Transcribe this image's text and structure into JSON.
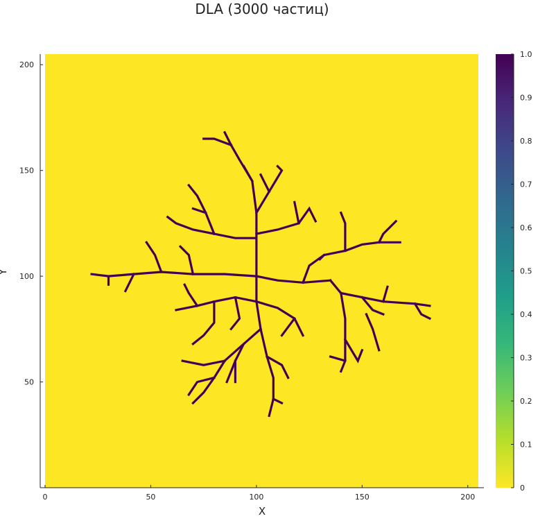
{
  "chart_data": {
    "type": "heatmap",
    "title": "DLA  (3000 частиц)",
    "xlabel": "X",
    "ylabel": "Y",
    "xlim": [
      0,
      205
    ],
    "ylim": [
      0,
      205
    ],
    "xticks": [
      0,
      50,
      100,
      150,
      200
    ],
    "yticks": [
      50,
      100,
      150,
      200
    ],
    "colorbar": {
      "range": [
        0,
        1
      ],
      "ticks": [
        "0",
        "0.1",
        "0.2",
        "0.3",
        "0.4",
        "0.5",
        "0.6",
        "0.7",
        "0.8",
        "0.9",
        "1.0"
      ],
      "colormap": "viridis",
      "stops": [
        "#fde725",
        "#b5de2b",
        "#6ece58",
        "#35b779",
        "#1f9e89",
        "#26828e",
        "#31688e",
        "#3e4989",
        "#482878",
        "#440154"
      ]
    },
    "grid": false,
    "background_value": 0,
    "cluster_value": 1,
    "cluster_color": "#440154",
    "background_color": "#fde725",
    "cluster_paths": [
      [
        [
          100,
          100
        ],
        [
          100,
          130
        ],
        [
          98,
          145
        ],
        [
          92,
          155
        ],
        [
          88,
          162
        ]
      ],
      [
        [
          88,
          162
        ],
        [
          85,
          168
        ]
      ],
      [
        [
          88,
          162
        ],
        [
          80,
          165
        ],
        [
          75,
          165
        ]
      ],
      [
        [
          100,
          130
        ],
        [
          106,
          140
        ],
        [
          112,
          150
        ],
        [
          110,
          152
        ]
      ],
      [
        [
          106,
          140
        ],
        [
          102,
          148
        ]
      ],
      [
        [
          98,
          145
        ],
        [
          94,
          152
        ]
      ],
      [
        [
          100,
          118
        ],
        [
          90,
          118
        ],
        [
          80,
          120
        ],
        [
          70,
          122
        ],
        [
          62,
          125
        ],
        [
          58,
          128
        ]
      ],
      [
        [
          80,
          120
        ],
        [
          76,
          130
        ],
        [
          72,
          138
        ],
        [
          68,
          143
        ]
      ],
      [
        [
          76,
          130
        ],
        [
          70,
          132
        ]
      ],
      [
        [
          100,
          120
        ],
        [
          110,
          122
        ],
        [
          120,
          125
        ],
        [
          125,
          132
        ],
        [
          128,
          126
        ]
      ],
      [
        [
          120,
          125
        ],
        [
          118,
          135
        ]
      ],
      [
        [
          100,
          100
        ],
        [
          85,
          101
        ],
        [
          70,
          101
        ],
        [
          55,
          102
        ],
        [
          42,
          101
        ],
        [
          30,
          100
        ],
        [
          22,
          101
        ]
      ],
      [
        [
          42,
          101
        ],
        [
          38,
          93
        ]
      ],
      [
        [
          55,
          102
        ],
        [
          52,
          110
        ],
        [
          48,
          116
        ]
      ],
      [
        [
          70,
          101
        ],
        [
          68,
          110
        ],
        [
          64,
          114
        ]
      ],
      [
        [
          30,
          100
        ],
        [
          30,
          96
        ]
      ],
      [
        [
          100,
          100
        ],
        [
          110,
          98
        ],
        [
          122,
          97
        ],
        [
          135,
          98
        ]
      ],
      [
        [
          122,
          97
        ],
        [
          125,
          105
        ],
        [
          132,
          110
        ],
        [
          142,
          112
        ],
        [
          150,
          115
        ],
        [
          158,
          116
        ],
        [
          168,
          116
        ]
      ],
      [
        [
          142,
          112
        ],
        [
          142,
          125
        ],
        [
          140,
          130
        ]
      ],
      [
        [
          158,
          116
        ],
        [
          160,
          120
        ],
        [
          166,
          126
        ]
      ],
      [
        [
          132,
          110
        ],
        [
          130,
          108
        ]
      ],
      [
        [
          135,
          98
        ],
        [
          140,
          92
        ],
        [
          150,
          90
        ],
        [
          160,
          88
        ],
        [
          175,
          87
        ],
        [
          182,
          86
        ]
      ],
      [
        [
          150,
          90
        ],
        [
          155,
          84
        ],
        [
          160,
          82
        ]
      ],
      [
        [
          175,
          87
        ],
        [
          178,
          82
        ],
        [
          182,
          80
        ]
      ],
      [
        [
          160,
          88
        ],
        [
          162,
          95
        ]
      ],
      [
        [
          140,
          92
        ],
        [
          142,
          80
        ],
        [
          142,
          70
        ],
        [
          142,
          60
        ],
        [
          140,
          55
        ]
      ],
      [
        [
          142,
          70
        ],
        [
          148,
          60
        ],
        [
          150,
          65
        ]
      ],
      [
        [
          142,
          60
        ],
        [
          135,
          62
        ]
      ],
      [
        [
          152,
          82
        ],
        [
          155,
          75
        ],
        [
          158,
          65
        ]
      ],
      [
        [
          100,
          100
        ],
        [
          100,
          88
        ],
        [
          102,
          75
        ],
        [
          105,
          62
        ],
        [
          108,
          52
        ],
        [
          108,
          42
        ],
        [
          106,
          34
        ]
      ],
      [
        [
          102,
          75
        ],
        [
          94,
          68
        ],
        [
          90,
          60
        ],
        [
          86,
          50
        ]
      ],
      [
        [
          105,
          62
        ],
        [
          112,
          58
        ],
        [
          115,
          52
        ]
      ],
      [
        [
          108,
          42
        ],
        [
          112,
          40
        ]
      ],
      [
        [
          94,
          68
        ],
        [
          85,
          60
        ],
        [
          80,
          52
        ],
        [
          75,
          45
        ],
        [
          70,
          40
        ]
      ],
      [
        [
          85,
          60
        ],
        [
          75,
          58
        ],
        [
          65,
          60
        ]
      ],
      [
        [
          80,
          52
        ],
        [
          72,
          50
        ],
        [
          68,
          44
        ]
      ],
      [
        [
          90,
          60
        ],
        [
          90,
          50
        ]
      ],
      [
        [
          100,
          88
        ],
        [
          90,
          90
        ],
        [
          80,
          88
        ],
        [
          72,
          86
        ],
        [
          62,
          84
        ]
      ],
      [
        [
          80,
          88
        ],
        [
          80,
          78
        ],
        [
          75,
          72
        ],
        [
          70,
          68
        ]
      ],
      [
        [
          72,
          86
        ],
        [
          68,
          92
        ],
        [
          66,
          96
        ]
      ],
      [
        [
          100,
          88
        ],
        [
          110,
          85
        ],
        [
          118,
          80
        ],
        [
          122,
          72
        ]
      ],
      [
        [
          118,
          80
        ],
        [
          112,
          72
        ]
      ],
      [
        [
          90,
          90
        ],
        [
          92,
          80
        ],
        [
          88,
          75
        ]
      ]
    ]
  }
}
